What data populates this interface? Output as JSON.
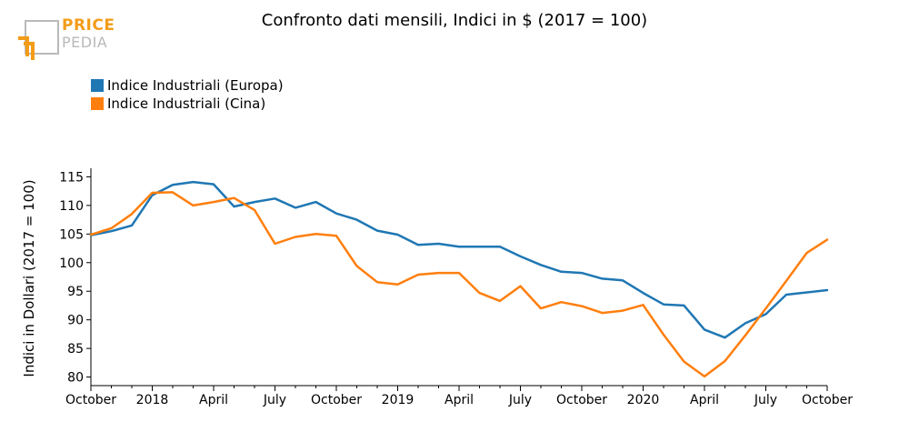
{
  "logo": {
    "word1": "PRICE",
    "word2": "PEDIA"
  },
  "chart_data": {
    "type": "line",
    "title": "Confronto dati mensili, Indici in $ (2017 = 100)",
    "xlabel": "",
    "ylabel": "Indici in Dollari (2017 = 100)",
    "ylim": [
      78.5,
      116.5
    ],
    "yticks": [
      80,
      85,
      90,
      95,
      100,
      105,
      110,
      115
    ],
    "xtick_labels": [
      {
        "index": 0,
        "label": "October"
      },
      {
        "index": 3,
        "label": "2018"
      },
      {
        "index": 6,
        "label": "April"
      },
      {
        "index": 9,
        "label": "July"
      },
      {
        "index": 12,
        "label": "October"
      },
      {
        "index": 15,
        "label": "2019"
      },
      {
        "index": 18,
        "label": "April"
      },
      {
        "index": 21,
        "label": "July"
      },
      {
        "index": 24,
        "label": "October"
      },
      {
        "index": 27,
        "label": "2020"
      },
      {
        "index": 30,
        "label": "April"
      },
      {
        "index": 33,
        "label": "July"
      },
      {
        "index": 36,
        "label": "October"
      }
    ],
    "grid": false,
    "legend": "top-left",
    "series": [
      {
        "name": "Indice Industriali (Europa)",
        "color": "#1f77b4",
        "values": [
          104.8,
          105.5,
          106.5,
          111.8,
          113.6,
          114.1,
          113.7,
          109.8,
          110.6,
          111.2,
          109.6,
          110.6,
          108.6,
          107.5,
          105.6,
          104.9,
          103.1,
          103.3,
          102.8,
          102.8,
          102.8,
          101.1,
          99.6,
          98.4,
          98.2,
          97.2,
          96.9,
          94.7,
          92.7,
          92.5,
          88.3,
          86.9,
          89.4,
          91.0,
          94.4,
          94.8,
          95.2
        ]
      },
      {
        "name": "Indice Industriali (Cina)",
        "color": "#ff7f0e",
        "values": [
          104.9,
          106.0,
          108.5,
          112.2,
          112.3,
          110.0,
          110.6,
          111.3,
          109.2,
          103.3,
          104.5,
          105.0,
          104.7,
          99.4,
          96.6,
          96.2,
          97.9,
          98.2,
          98.2,
          94.7,
          93.3,
          95.9,
          92.0,
          93.1,
          92.4,
          91.2,
          91.6,
          92.6,
          87.4,
          82.7,
          80.1,
          82.8,
          87.3,
          92.0,
          96.8,
          101.7,
          104.0
        ]
      }
    ]
  }
}
